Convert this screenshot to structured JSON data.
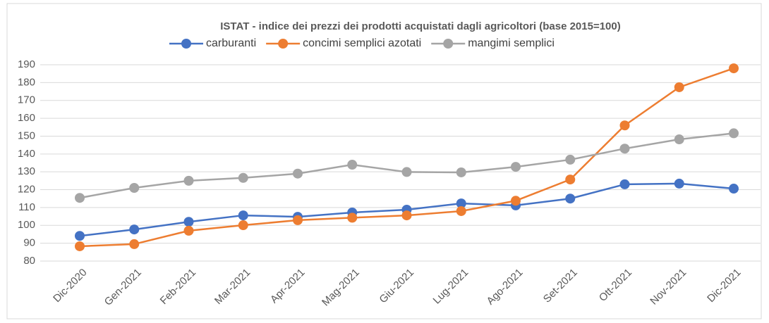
{
  "chart_data": {
    "type": "line",
    "title": "ISTAT - indice dei prezzi dei prodotti acquistati dagli agricoltori (base 2015=100)",
    "categories": [
      "Dic-2020",
      "Gen-2021",
      "Feb-2021",
      "Mar-2021",
      "Apr-2021",
      "Mag-2021",
      "Giu-2021",
      "Lug-2021",
      "Ago-2021",
      "Set-2021",
      "Ott-2021",
      "Nov-2021",
      "Dic-2021"
    ],
    "series": [
      {
        "name": "carburanti",
        "color": "#4472c4",
        "values": [
          94.1,
          97.7,
          102,
          105.6,
          104.8,
          107.2,
          108.8,
          112.3,
          111.2,
          115,
          123,
          123.4,
          120.6
        ]
      },
      {
        "name": "concimi semplici azotati",
        "color": "#ed7d31",
        "values": [
          88.3,
          89.5,
          97,
          100.1,
          102.9,
          104.3,
          105.6,
          108,
          113.8,
          125.7,
          156,
          177.4,
          188
        ]
      },
      {
        "name": "mangimi semplici",
        "color": "#a5a5a5",
        "values": [
          115.4,
          121,
          125,
          126.6,
          129,
          134,
          129.9,
          129.7,
          132.8,
          136.8,
          143,
          148.2,
          151.6
        ]
      }
    ],
    "ylim": [
      80,
      190
    ],
    "yticks": [
      80,
      90,
      100,
      110,
      120,
      130,
      140,
      150,
      160,
      170,
      180,
      190
    ],
    "grid": true,
    "legend": "top"
  }
}
